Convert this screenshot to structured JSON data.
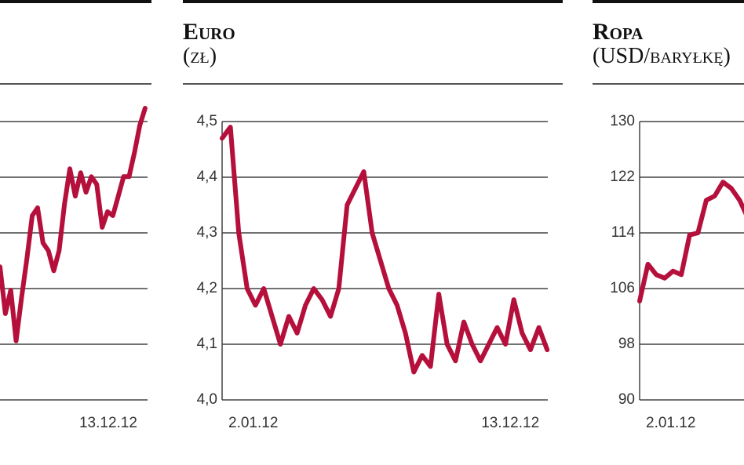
{
  "chart_data": [
    {
      "type": "line",
      "color": "#b5103c",
      "values": [
        2.39,
        1.55,
        1.97,
        1.06,
        1.83,
        2.54,
        3.31,
        3.45,
        2.82,
        2.68,
        2.32,
        2.68,
        3.52,
        4.15,
        3.66,
        4.08,
        3.73,
        4.01,
        3.87,
        3.1,
        3.38,
        3.31,
        3.66,
        4.01,
        4.01,
        4.44,
        4.93,
        5.24
      ],
      "ylim": [
        0,
        5
      ],
      "grid": true,
      "xticks": [
        {
          "value": 27,
          "label": "13.12.12"
        }
      ]
    },
    {
      "type": "line",
      "title": "Euro",
      "subtitle": "(zł)",
      "color": "#b5103c",
      "values": [
        4.47,
        4.49,
        4.3,
        4.2,
        4.17,
        4.2,
        4.15,
        4.1,
        4.15,
        4.12,
        4.17,
        4.2,
        4.18,
        4.15,
        4.2,
        4.35,
        4.38,
        4.41,
        4.3,
        4.25,
        4.2,
        4.17,
        4.12,
        4.05,
        4.08,
        4.06,
        4.19,
        4.1,
        4.07,
        4.14,
        4.1,
        4.07,
        4.1,
        4.13,
        4.1,
        4.18,
        4.12,
        4.09,
        4.13,
        4.09
      ],
      "ylim": [
        4.0,
        4.5
      ],
      "grid": true,
      "yticks": [
        {
          "value": 4.0,
          "label": "4,0"
        },
        {
          "value": 4.1,
          "label": "4,1"
        },
        {
          "value": 4.2,
          "label": "4,2"
        },
        {
          "value": 4.3,
          "label": "4,3"
        },
        {
          "value": 4.4,
          "label": "4,4"
        },
        {
          "value": 4.5,
          "label": "4,5"
        }
      ],
      "xticks": [
        {
          "value": 0,
          "label": "2.01.12"
        },
        {
          "value": 39,
          "label": "13.12.12"
        }
      ]
    },
    {
      "type": "line",
      "title": "Ropa",
      "subtitle": "(USD/baryłkę)",
      "color": "#b5103c",
      "values": [
        104.2,
        109.5,
        108,
        107.5,
        108.5,
        108,
        113.7,
        114,
        118.7,
        119.3,
        121.3,
        120.4,
        118.7,
        116.1
      ],
      "ylim": [
        90,
        130
      ],
      "grid": true,
      "yticks": [
        90,
        98,
        106,
        114,
        122,
        130
      ],
      "xticks": [
        {
          "value": 0,
          "label": "2.01.12"
        }
      ]
    }
  ]
}
